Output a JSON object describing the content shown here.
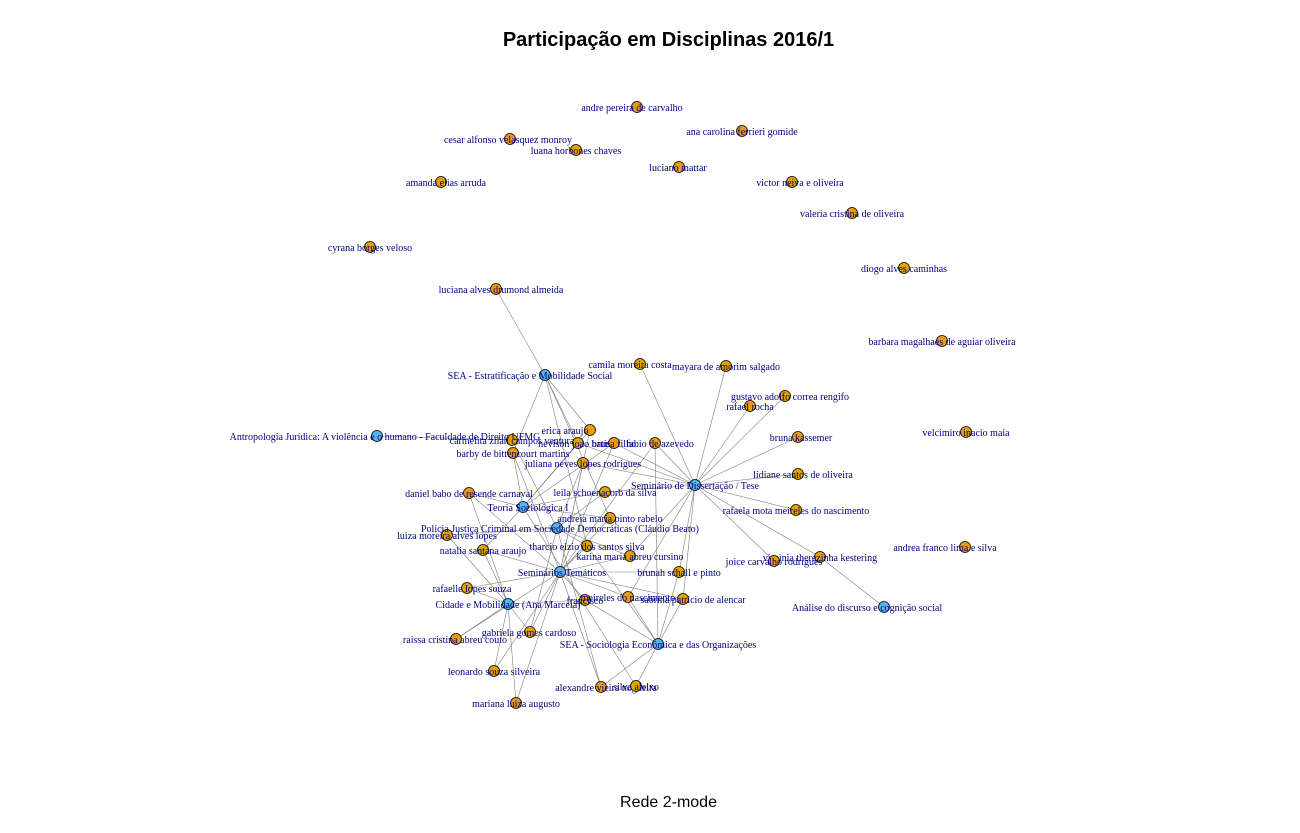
{
  "title": "Participação em Disciplinas 2016/1",
  "caption": "Rede 2-mode",
  "colors": {
    "person": "#e69f00",
    "course": "#56b4e9",
    "edge": "#808080",
    "label": "#000080",
    "outline": "#000000"
  },
  "network": {
    "courses": [
      "SEA - Estratificação e Mobilidade Social",
      "Antropologia Jurídica: A violência e o humano - Faculdade de Direito UFMG",
      "Seminário de Dissertação / Tese",
      "Teoria Sociológica I",
      "Polícia Justiça Criminal em Sociedade Democráticas (Cláudio Beato)",
      "Seminários Temáticos",
      "Cidade e Mobilidade (Ana Marcela)",
      "SEA - Sociologia Econômica e das Organizações",
      "Análise do discurso e cognição social"
    ],
    "people": [
      "andre pereira de carvalho",
      "ana carolina ferrieri gomide",
      "cesar alfonso velasquez monroy",
      "luana horbones chaves",
      "luciano mattar",
      "amanda elias arruda",
      "victor neiva e oliveira",
      "valeria cristina de oliveira",
      "cyrana borges veloso",
      "diogo alves caminhas",
      "luciana alves drumond almeida",
      "barbara magalhaes de aguiar oliveira",
      "camila moreira costa",
      "mayara de amorim salgado",
      "gustavo adolfo correa rengifo",
      "rafael rocha",
      "velcimiro inacio maia",
      "erica araujo",
      "carmelita zilah campos ventura",
      "nevison joao batista",
      "bruna filho",
      "fabio de azevedo",
      "bruna kassemer",
      "barby de bittencourt martins",
      "juliana neves lopes rodrigues",
      "lidiane santos de oliveira",
      "daniel babo de resende carnaval",
      "leila schoenacorb da silva",
      "rafaela mota meireles do nascimento",
      "andreia maria pinto rabelo",
      "luiza moreira alves lopes",
      "tharcio elzio dos santos silva",
      "natalia santana araujo",
      "karina maria abreu cursino",
      "virginia therezinha kestering",
      "joice carvalho rodrigues",
      "andrea franco lima e silva",
      "brunah schall e pinto",
      "rafaelle lopes souza",
      "francisco",
      "meireles do nascimento",
      "sabrina patricio de alencar",
      "raissa cristina abreu couto",
      "gabriela gomes cardoso",
      "leonardo souza silveira",
      "alexandre vieira nogueira",
      "silva aleixo",
      "mariana luiza augusto"
    ]
  }
}
